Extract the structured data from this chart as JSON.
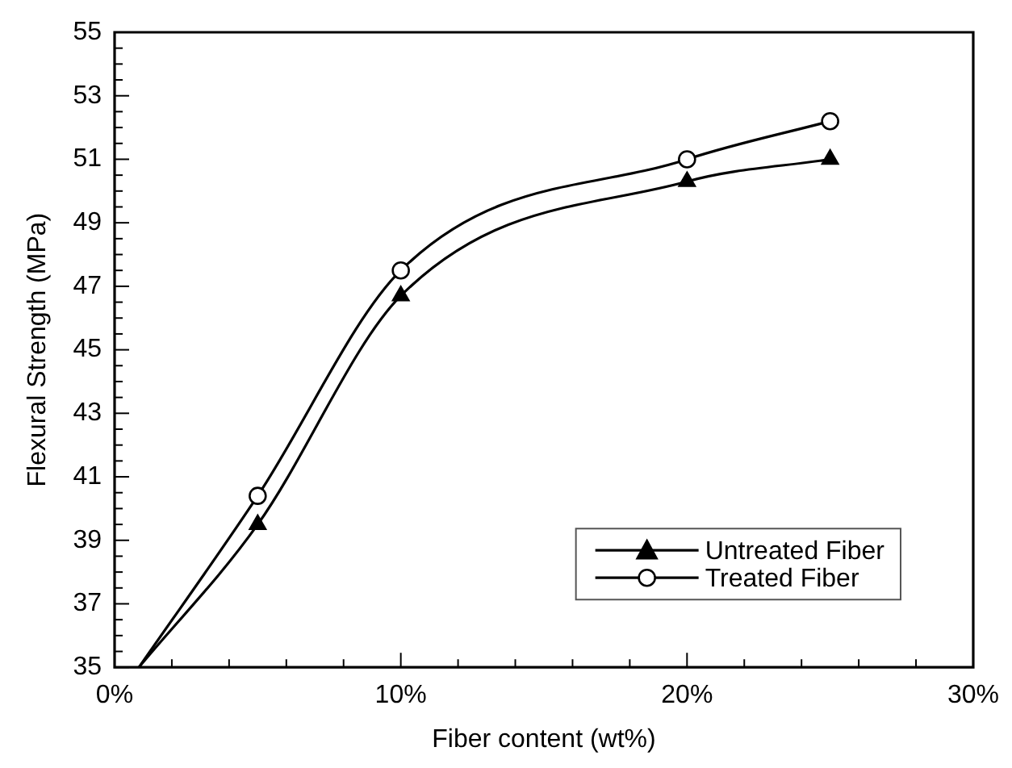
{
  "chart_data": {
    "type": "line",
    "xlabel": "Fiber content (wt%)",
    "ylabel": "Flexural Strength (MPa)",
    "series": [
      {
        "name": "Untreated Fiber",
        "type": "scatter",
        "color": "#000000",
        "marker": "triangle",
        "x": [
          5,
          10,
          20,
          25
        ],
        "values": [
          39.5,
          46.7,
          50.3,
          51.0
        ]
      },
      {
        "name": "Treated Fiber",
        "type": "scatter",
        "color": "#000000",
        "marker": "circle",
        "x": [
          5,
          10,
          20,
          25
        ],
        "values": [
          40.4,
          47.5,
          51.0,
          52.2
        ]
      },
      {
        "color": "#000000",
        "marker": "none",
        "x": [
          0.85,
          5,
          10,
          20,
          25
        ],
        "values": [
          35,
          39.5,
          46.7,
          50.3,
          51.0
        ]
      },
      {
        "color": "#000000",
        "marker": "none",
        "x": [
          0.85,
          5,
          10,
          20,
          25
        ],
        "values": [
          35,
          40.4,
          47.5,
          51.0,
          52.2
        ]
      }
    ],
    "xlim": [
      0,
      30
    ],
    "xticks": [
      {
        "value": 0,
        "label": "0%"
      },
      {
        "value": 2,
        "label": null
      },
      {
        "value": 4,
        "label": null
      },
      {
        "value": 6,
        "label": null
      },
      {
        "value": 8,
        "label": null
      },
      {
        "value": 10,
        "label": "10%"
      },
      {
        "value": 12,
        "label": null
      },
      {
        "value": 14,
        "label": null
      },
      {
        "value": 16,
        "label": null
      },
      {
        "value": 18,
        "label": null
      },
      {
        "value": 20,
        "label": "20%"
      },
      {
        "value": 22,
        "label": null
      },
      {
        "value": 24,
        "label": null
      },
      {
        "value": 26,
        "label": null
      },
      {
        "value": 28,
        "label": null
      },
      {
        "value": 30,
        "label": "30%"
      }
    ],
    "ylim": [
      35,
      55
    ],
    "yticks": [
      35,
      {
        "value": 35.5,
        "label": null
      },
      {
        "value": 36,
        "label": null
      },
      {
        "value": 36.5,
        "label": null
      },
      37,
      {
        "value": 37.5,
        "label": null
      },
      {
        "value": 38,
        "label": null
      },
      {
        "value": 38.5,
        "label": null
      },
      39,
      {
        "value": 39.5,
        "label": null
      },
      {
        "value": 40,
        "label": null
      },
      {
        "value": 40.5,
        "label": null
      },
      41,
      {
        "value": 41.5,
        "label": null
      },
      {
        "value": 42,
        "label": null
      },
      {
        "value": 42.5,
        "label": null
      },
      43,
      {
        "value": 43.5,
        "label": null
      },
      {
        "value": 44,
        "label": null
      },
      {
        "value": 44.5,
        "label": null
      },
      45,
      {
        "value": 45.5,
        "label": null
      },
      {
        "value": 46,
        "label": null
      },
      {
        "value": 46.5,
        "label": null
      },
      47,
      {
        "value": 47.5,
        "label": null
      },
      {
        "value": 48,
        "label": null
      },
      {
        "value": 48.5,
        "label": null
      },
      49,
      {
        "value": 49.5,
        "label": null
      },
      {
        "value": 50,
        "label": null
      },
      {
        "value": 50.5,
        "label": null
      },
      51,
      {
        "value": 51.5,
        "label": null
      },
      {
        "value": 52,
        "label": null
      },
      {
        "value": 52.5,
        "label": null
      },
      53,
      {
        "value": 53.5,
        "label": null
      },
      {
        "value": 54,
        "label": null
      },
      {
        "value": 54.5,
        "label": null
      },
      55
    ],
    "grid": false,
    "legend": "bottom right",
    "line_style": "solid"
  }
}
